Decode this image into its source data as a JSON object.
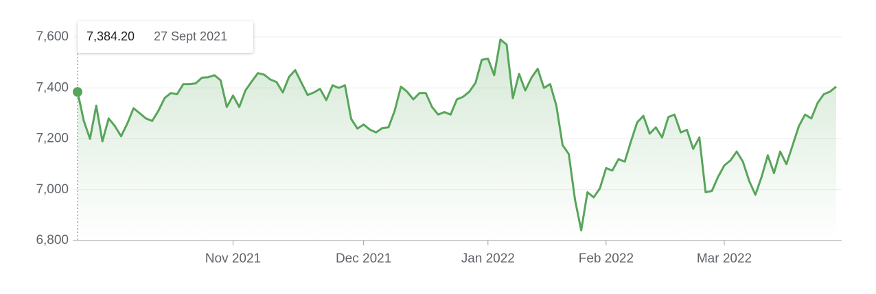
{
  "chart_data": {
    "type": "line",
    "categories": [
      null,
      null,
      null,
      null,
      null,
      null,
      null,
      null,
      null,
      null,
      null,
      null,
      null,
      null,
      null,
      null,
      null,
      null,
      null,
      null,
      null,
      null,
      null,
      null,
      null,
      "Nov 2021",
      null,
      null,
      null,
      null,
      null,
      null,
      null,
      null,
      null,
      null,
      null,
      null,
      null,
      null,
      null,
      null,
      null,
      null,
      null,
      null,
      "Dec 2021",
      null,
      null,
      null,
      null,
      null,
      null,
      null,
      null,
      null,
      null,
      null,
      null,
      null,
      null,
      null,
      null,
      null,
      null,
      null,
      "Jan 2022",
      null,
      null,
      null,
      null,
      null,
      null,
      null,
      null,
      null,
      null,
      null,
      null,
      null,
      null,
      null,
      null,
      null,
      null,
      "Feb 2022",
      null,
      null,
      null,
      null,
      null,
      null,
      null,
      null,
      null,
      null,
      null,
      null,
      null,
      null,
      null,
      null,
      null,
      null,
      "Mar 2022",
      null,
      null,
      null,
      null,
      null,
      null,
      null,
      null,
      null,
      null,
      null,
      null,
      null,
      null,
      null,
      null,
      null,
      null
    ],
    "series": [
      {
        "color": "#57a55a",
        "values": [
          7384.2,
          7270,
          7200,
          7330,
          7190,
          7280,
          7250,
          7210,
          7260,
          7320,
          7300,
          7280,
          7270,
          7310,
          7360,
          7380,
          7375,
          7415,
          7415,
          7418,
          7440,
          7442,
          7450,
          7430,
          7325,
          7370,
          7325,
          7390,
          7425,
          7458,
          7452,
          7433,
          7423,
          7382,
          7443,
          7470,
          7420,
          7372,
          7382,
          7396,
          7352,
          7410,
          7400,
          7410,
          7278,
          7240,
          7256,
          7236,
          7225,
          7242,
          7245,
          7310,
          7405,
          7385,
          7355,
          7380,
          7380,
          7325,
          7295,
          7305,
          7295,
          7355,
          7365,
          7385,
          7420,
          7510,
          7515,
          7450,
          7590,
          7570,
          7360,
          7455,
          7390,
          7440,
          7475,
          7400,
          7415,
          7330,
          7175,
          7140,
          6960,
          6840,
          6990,
          6970,
          7005,
          7085,
          7075,
          7120,
          7110,
          7190,
          7265,
          7290,
          7220,
          7245,
          7205,
          7285,
          7295,
          7225,
          7235,
          7160,
          7205,
          6990,
          6995,
          7050,
          7095,
          7115,
          7150,
          7110,
          7035,
          6980,
          7050,
          7135,
          7065,
          7150,
          7100,
          7175,
          7250,
          7295,
          7280,
          7340,
          7375,
          7385,
          7405
        ]
      }
    ],
    "ylim": [
      6800,
      7600
    ],
    "yticks": [
      {
        "value": 6800,
        "label": "6,800"
      },
      {
        "value": 7000,
        "label": "7,000"
      },
      {
        "value": 7200,
        "label": "7,200"
      },
      {
        "value": 7400,
        "label": "7,400"
      },
      {
        "value": 7600,
        "label": "7,600"
      }
    ],
    "grid": true,
    "tooltip": {
      "value": 7384.2,
      "label": "7,384.20",
      "date": "27 Sept 2021"
    }
  }
}
